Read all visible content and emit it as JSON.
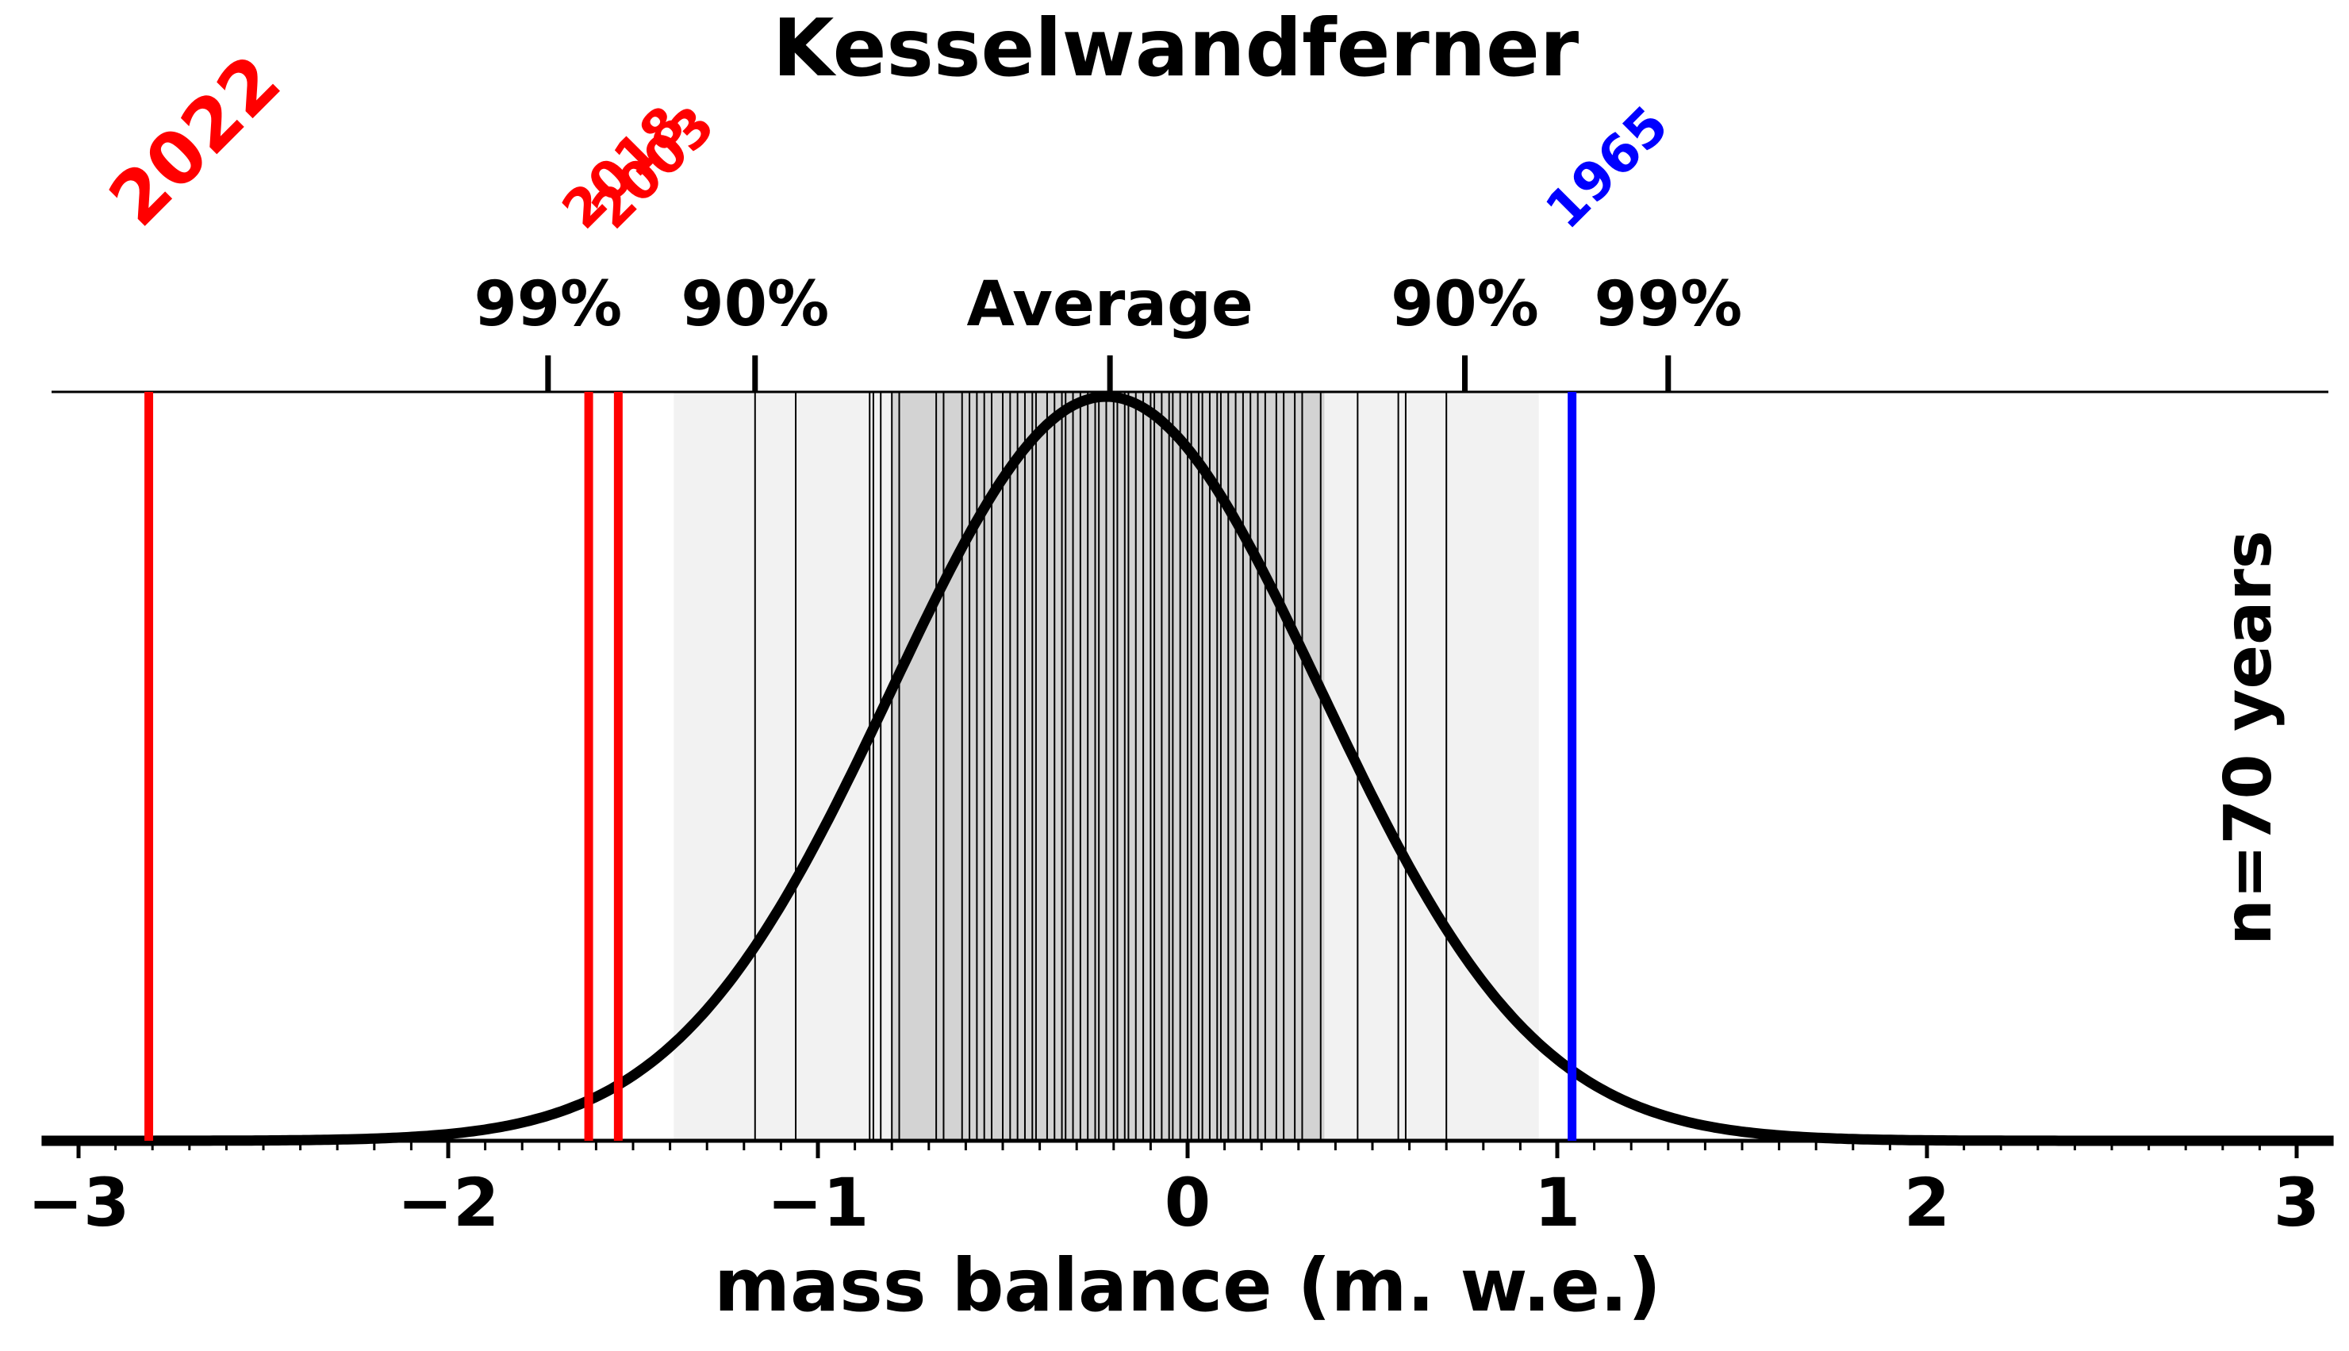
{
  "chart_data": {
    "type": "line",
    "title": "Kesselwandferner",
    "xlabel": "mass balance (m. w.e.)",
    "ylabel": "",
    "side_label": "n=70 years",
    "xlim": [
      -3.1,
      3.1
    ],
    "x_ticks": [
      {
        "value": -3,
        "label": "−3"
      },
      {
        "value": -2,
        "label": "−2"
      },
      {
        "value": -1,
        "label": "−1"
      },
      {
        "value": 0,
        "label": "0"
      },
      {
        "value": 1,
        "label": "1"
      },
      {
        "value": 2,
        "label": "2"
      },
      {
        "value": 3,
        "label": "3"
      }
    ],
    "distribution": {
      "mean": -0.22,
      "sd": 0.58,
      "color": "#000000"
    },
    "percentile_markers": [
      {
        "value": -1.73,
        "label": "99%"
      },
      {
        "value": -1.17,
        "label": "90%"
      },
      {
        "value": -0.21,
        "label": "Average"
      },
      {
        "value": 0.75,
        "label": "90%"
      },
      {
        "value": 1.3,
        "label": "99%"
      }
    ],
    "bands": [
      {
        "range": [
          -1.39,
          0.95
        ],
        "color": "#f2f2f2"
      },
      {
        "range": [
          -0.8,
          0.37
        ],
        "color": "#d3d3d3"
      }
    ],
    "annual_values": [
      -1.17,
      -1.06,
      -0.86,
      -0.85,
      -0.83,
      -0.8,
      -0.78,
      -0.68,
      -0.66,
      -0.61,
      -0.59,
      -0.57,
      -0.55,
      -0.53,
      -0.5,
      -0.48,
      -0.46,
      -0.44,
      -0.42,
      -0.41,
      -0.38,
      -0.36,
      -0.34,
      -0.33,
      -0.31,
      -0.29,
      -0.27,
      -0.25,
      -0.24,
      -0.22,
      -0.2,
      -0.19,
      -0.17,
      -0.16,
      -0.14,
      -0.12,
      -0.1,
      -0.09,
      -0.07,
      -0.05,
      -0.04,
      -0.02,
      0.0,
      0.01,
      0.03,
      0.04,
      0.06,
      0.08,
      0.09,
      0.11,
      0.13,
      0.15,
      0.17,
      0.19,
      0.21,
      0.24,
      0.26,
      0.29,
      0.31,
      0.36,
      0.46,
      0.57,
      0.59,
      0.7
    ],
    "highlighted_years": [
      {
        "year": "2022",
        "value": -2.81,
        "color": "#ff0000",
        "size": "large"
      },
      {
        "year": "2018",
        "value": -1.62,
        "color": "#ff0000",
        "size": "small"
      },
      {
        "year": "2003",
        "value": -1.54,
        "color": "#ff0000",
        "size": "small"
      },
      {
        "year": "1965",
        "value": 1.04,
        "color": "#0000ff",
        "size": "small"
      }
    ]
  }
}
